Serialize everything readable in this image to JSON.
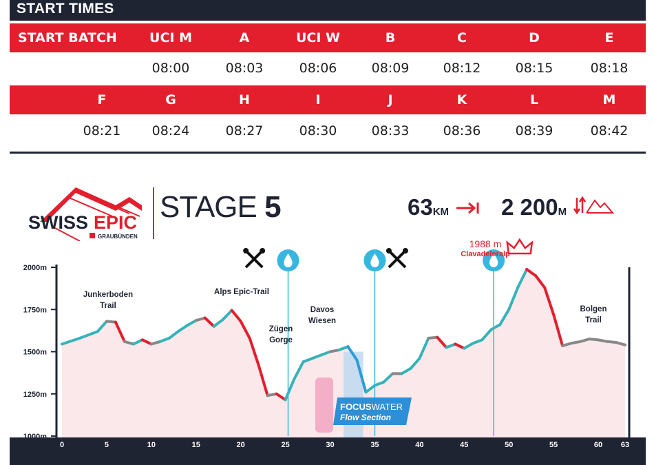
{
  "header": {
    "title": "START TIMES"
  },
  "start_table": {
    "row1": {
      "label": "START BATCH",
      "batches": [
        "UCI M",
        "A",
        "UCI W",
        "B",
        "C",
        "D",
        "E"
      ],
      "times": [
        "08:00",
        "08:03",
        "08:06",
        "08:09",
        "08:12",
        "08:15",
        "08:18"
      ]
    },
    "row2": {
      "batches": [
        "F",
        "G",
        "H",
        "I",
        "J",
        "K",
        "L",
        "M"
      ],
      "times": [
        "08:21",
        "08:24",
        "08:27",
        "08:30",
        "08:33",
        "08:36",
        "08:39",
        "08:42"
      ]
    }
  },
  "logo": {
    "main_left": "SWISS",
    "main_right": "EPIC",
    "sub": "GRAUBÜNDEN"
  },
  "stage": {
    "label": "STAGE",
    "number": "5"
  },
  "stats": {
    "distance": "63",
    "distance_unit": "KM",
    "climb": "2 200",
    "climb_unit": "M"
  },
  "annotations": {
    "junkerboden": [
      "Junkerboden",
      "Trail"
    ],
    "alps": "Alps Epic-Trail",
    "zuegen": [
      "Zügen",
      "Gorge"
    ],
    "davos": [
      "Davos",
      "Wiesen"
    ],
    "bolgen": [
      "Bolgen",
      "Trail"
    ],
    "summit_alt": "1988 m",
    "summit_name": "Clavadeleralp",
    "focus_brand_a": "FOCUS",
    "focus_brand_b": "WATER",
    "focus_section": "Flow Section"
  },
  "colors": {
    "red": "#e31e2d",
    "navy": "#1f2433",
    "teal": "#36b3b8",
    "blue": "#2e9bd6",
    "fill": "#fbe8ea",
    "gray": "#888888"
  },
  "icons": [
    "tools-icon",
    "water-drop-icon",
    "crown-icon",
    "distance-arrow-icon",
    "climb-icon"
  ],
  "chart_data": {
    "type": "area",
    "title": "",
    "xlabel": "",
    "ylabel": "",
    "xlim": [
      0,
      63
    ],
    "ylim": [
      1000,
      2000
    ],
    "xticks": [
      0,
      5,
      10,
      15,
      20,
      25,
      30,
      35,
      40,
      45,
      50,
      55,
      60,
      63
    ],
    "yticks": [
      1000,
      1250,
      1500,
      1750,
      2000
    ],
    "ytick_labels": [
      "1000m",
      "1250m",
      "1500m",
      "1750m",
      "2000m"
    ],
    "series": [
      {
        "x": [
          0,
          2,
          4,
          5,
          6,
          7,
          8,
          9,
          10,
          11,
          12,
          13,
          14,
          15,
          16,
          17,
          18,
          19,
          20,
          21,
          22,
          23,
          24,
          25,
          26,
          27,
          28,
          29,
          30,
          31,
          32,
          33,
          34,
          35,
          36,
          37,
          38,
          39,
          40,
          41,
          42,
          43,
          44,
          45,
          46,
          47,
          48,
          49,
          50,
          51,
          52,
          53,
          54,
          55,
          56,
          57,
          58,
          59,
          60,
          61,
          62,
          63
        ],
        "y": [
          1545,
          1580,
          1620,
          1680,
          1675,
          1560,
          1545,
          1570,
          1545,
          1560,
          1580,
          1620,
          1655,
          1685,
          1700,
          1650,
          1690,
          1745,
          1680,
          1580,
          1420,
          1240,
          1250,
          1215,
          1340,
          1440,
          1460,
          1480,
          1500,
          1510,
          1530,
          1450,
          1260,
          1300,
          1320,
          1370,
          1370,
          1400,
          1460,
          1580,
          1585,
          1525,
          1545,
          1520,
          1550,
          1570,
          1630,
          1660,
          1750,
          1880,
          1988,
          1950,
          1880,
          1720,
          1535,
          1550,
          1560,
          1575,
          1570,
          1560,
          1555,
          1540
        ]
      }
    ],
    "annotations": [
      {
        "x": 5.5,
        "label": "Junkerboden Trail"
      },
      {
        "x": 18.5,
        "label": "Alps Epic-Trail"
      },
      {
        "x": 24.5,
        "label": "Zügen Gorge"
      },
      {
        "x": 28.5,
        "label": "Davos Wiesen"
      },
      {
        "x": 51.5,
        "label": "Clavadeleralp",
        "value": 1988
      },
      {
        "x": 58,
        "label": "Bolgen Trail"
      }
    ],
    "water_points": [
      25.3,
      35,
      48.3
    ],
    "tech_points": [
      21.5,
      37.5
    ],
    "flow_section": [
      31.5,
      33.7
    ]
  }
}
